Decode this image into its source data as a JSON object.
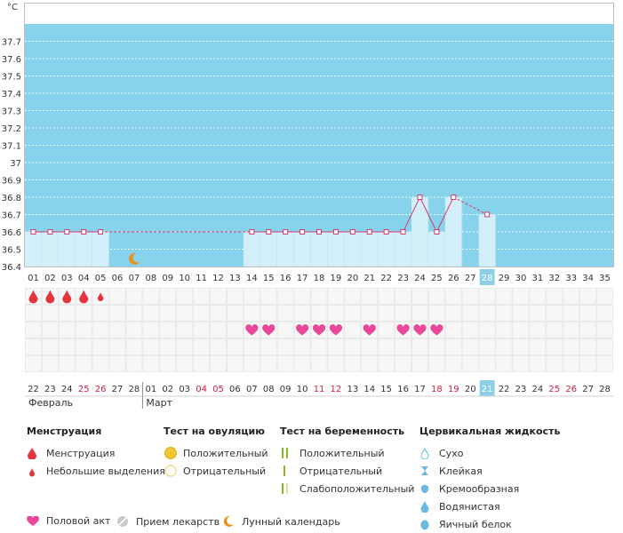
{
  "chart_data": {
    "type": "line",
    "unit_label": "°C",
    "y_ticks": [
      "36.4",
      "36.5",
      "36.6",
      "36.7",
      "36.8",
      "36.9",
      "37",
      "37.1",
      "37.2",
      "37.3",
      "37.4",
      "37.5",
      "37.6",
      "37.7"
    ],
    "ylim": [
      36.4,
      37.8
    ],
    "cycle_days": [
      "01",
      "02",
      "03",
      "04",
      "05",
      "06",
      "07",
      "08",
      "09",
      "10",
      "11",
      "12",
      "13",
      "14",
      "15",
      "16",
      "17",
      "18",
      "19",
      "20",
      "21",
      "22",
      "23",
      "24",
      "25",
      "26",
      "27",
      "28",
      "29",
      "30",
      "31",
      "32",
      "33",
      "34",
      "35"
    ],
    "current_day_index": 27,
    "temperatures": [
      36.6,
      36.6,
      36.6,
      36.6,
      36.6,
      null,
      null,
      null,
      null,
      null,
      null,
      null,
      null,
      36.6,
      36.6,
      36.6,
      36.6,
      36.6,
      36.6,
      36.6,
      36.6,
      36.6,
      36.6,
      36.8,
      36.6,
      36.8,
      null,
      36.7,
      null,
      null,
      null,
      null,
      null,
      null,
      null
    ],
    "dashed_gaps": [
      [
        4,
        13
      ],
      [
        25,
        27
      ]
    ],
    "moon_day_index": 6,
    "menstruation": [
      {
        "day_index": 0,
        "size": "large"
      },
      {
        "day_index": 1,
        "size": "large"
      },
      {
        "day_index": 2,
        "size": "large"
      },
      {
        "day_index": 3,
        "size": "large"
      },
      {
        "day_index": 4,
        "size": "small"
      }
    ],
    "intercourse_day_indices": [
      13,
      14,
      16,
      17,
      18,
      20,
      22,
      23,
      24
    ],
    "calendar_dates": [
      "22",
      "23",
      "24",
      "25",
      "26",
      "27",
      "28",
      "01",
      "02",
      "03",
      "04",
      "05",
      "06",
      "07",
      "08",
      "09",
      "10",
      "11",
      "12",
      "13",
      "14",
      "15",
      "16",
      "17",
      "18",
      "19",
      "20",
      "21",
      "22",
      "23",
      "24",
      "25",
      "26",
      "27",
      "28"
    ],
    "weekend_indices": [
      3,
      4,
      10,
      11,
      17,
      18,
      24,
      25,
      31,
      32
    ],
    "month_labels": [
      {
        "label": "Февраль",
        "start_index": 0
      },
      {
        "label": "Март",
        "start_index": 7
      }
    ],
    "colors": {
      "sky": "#87d3ec",
      "bar": "#d2effa",
      "line": "#d63a6e",
      "weekend": "#cc2244",
      "today": "#8ecfe8",
      "heart": "#e8479a",
      "drop": "#e6333e",
      "moon": "#e8921a"
    }
  },
  "legend": {
    "menstruation": {
      "title": "Менструация",
      "items": [
        "Менструация",
        "Небольшие выделения"
      ]
    },
    "ovulation": {
      "title": "Тест на овуляцию",
      "items": [
        "Положительный",
        "Отрицательный"
      ]
    },
    "pregnancy": {
      "title": "Тест на беременность",
      "items": [
        "Положительный",
        "Отрицательный",
        "Слабоположительный"
      ]
    },
    "cervical": {
      "title": "Цервикальная жидкость",
      "items": [
        "Сухо",
        "Клейкая",
        "Кремообразная",
        "Водянистая",
        "Яичный белок"
      ]
    },
    "bottom": [
      "Половой акт",
      "Прием лекарств",
      "Лунный календарь"
    ]
  }
}
